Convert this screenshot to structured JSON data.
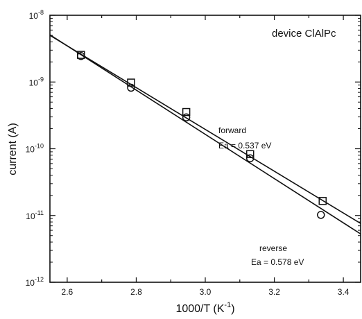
{
  "chart_data": {
    "type": "scatter",
    "y_scale": "log",
    "xlim": [
      2.55,
      3.45
    ],
    "ylim": [
      1e-12,
      1e-08
    ],
    "x_ticks": [
      2.6,
      2.8,
      3.0,
      3.2,
      3.4
    ],
    "x_tick_labels": [
      "2.6",
      "2.8",
      "3.0",
      "3.2",
      "3.4"
    ],
    "y_ticks": [
      1e-12,
      1e-11,
      1e-10,
      1e-09,
      1e-08
    ],
    "y_tick_labels": [
      {
        "base": "10",
        "exp": "-12"
      },
      {
        "base": "10",
        "exp": "-11"
      },
      {
        "base": "10",
        "exp": "-10"
      },
      {
        "base": "10",
        "exp": "-9"
      },
      {
        "base": "10",
        "exp": "-8"
      }
    ],
    "xlabel": {
      "main": "1000/T (K",
      "exp": "-1",
      "close": ")"
    },
    "ylabel": "current (A)",
    "grid": false,
    "series": [
      {
        "name": "forward",
        "marker": "square",
        "x": [
          2.64,
          2.785,
          2.945,
          3.13,
          3.34
        ],
        "y": [
          2.55e-09,
          9.8e-10,
          3.55e-10,
          8.3e-11,
          1.65e-11
        ],
        "fit": {
          "x": [
            2.55,
            3.45
          ],
          "y": [
            5e-09,
            7.6e-12
          ]
        }
      },
      {
        "name": "reverse",
        "marker": "circle",
        "x": [
          2.64,
          2.785,
          2.945,
          3.13,
          3.335
        ],
        "y": [
          2.45e-09,
          8.2e-10,
          2.95e-10,
          7.2e-11,
          1.02e-11
        ],
        "fit": {
          "x": [
            2.55,
            3.45
          ],
          "y": [
            5.1e-09,
            5.3e-12
          ]
        }
      }
    ],
    "annotations": {
      "device": "device ClAlPc",
      "forward_label": "forward",
      "forward_ea": "Ea = 0.537 eV",
      "reverse_label": "reverse",
      "reverse_ea": "Ea = 0.578 eV"
    }
  }
}
